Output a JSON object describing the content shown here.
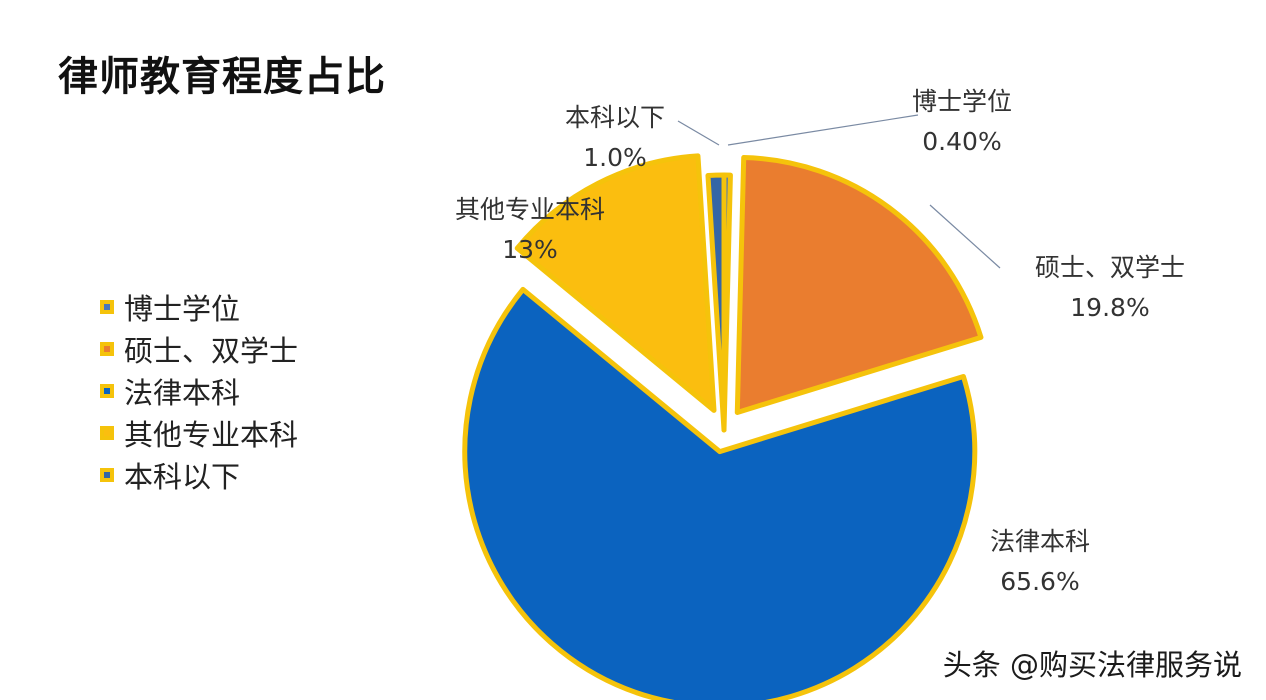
{
  "title": "律师教育程度占比",
  "watermark": "头条 @购买法律服务说",
  "chart_data": {
    "type": "pie",
    "title": "律师教育程度占比",
    "start_angle_deg": 0,
    "direction": "clockwise",
    "legend_position": "left",
    "slices": [
      {
        "name": "博士学位",
        "value": 0.4,
        "label": "0.40%",
        "color": "#4a76b8",
        "border": "#f5c30b",
        "exploded": false
      },
      {
        "name": "硕士、双学士",
        "value": 19.8,
        "label": "19.8%",
        "color": "#ea7d2f",
        "border": "#f5c30b",
        "exploded": true
      },
      {
        "name": "法律本科",
        "value": 65.6,
        "label": "65.6%",
        "color": "#0b63bf",
        "border": "#f5c30b",
        "exploded": true
      },
      {
        "name": "其他专业本科",
        "value": 13,
        "label": "13%",
        "color": "#fbbe0f",
        "border": "#f5c30b",
        "exploded": true
      },
      {
        "name": "本科以下",
        "value": 1.0,
        "label": "1.0%",
        "color": "#3466a6",
        "border": "#f5c30b",
        "exploded": false
      }
    ]
  }
}
